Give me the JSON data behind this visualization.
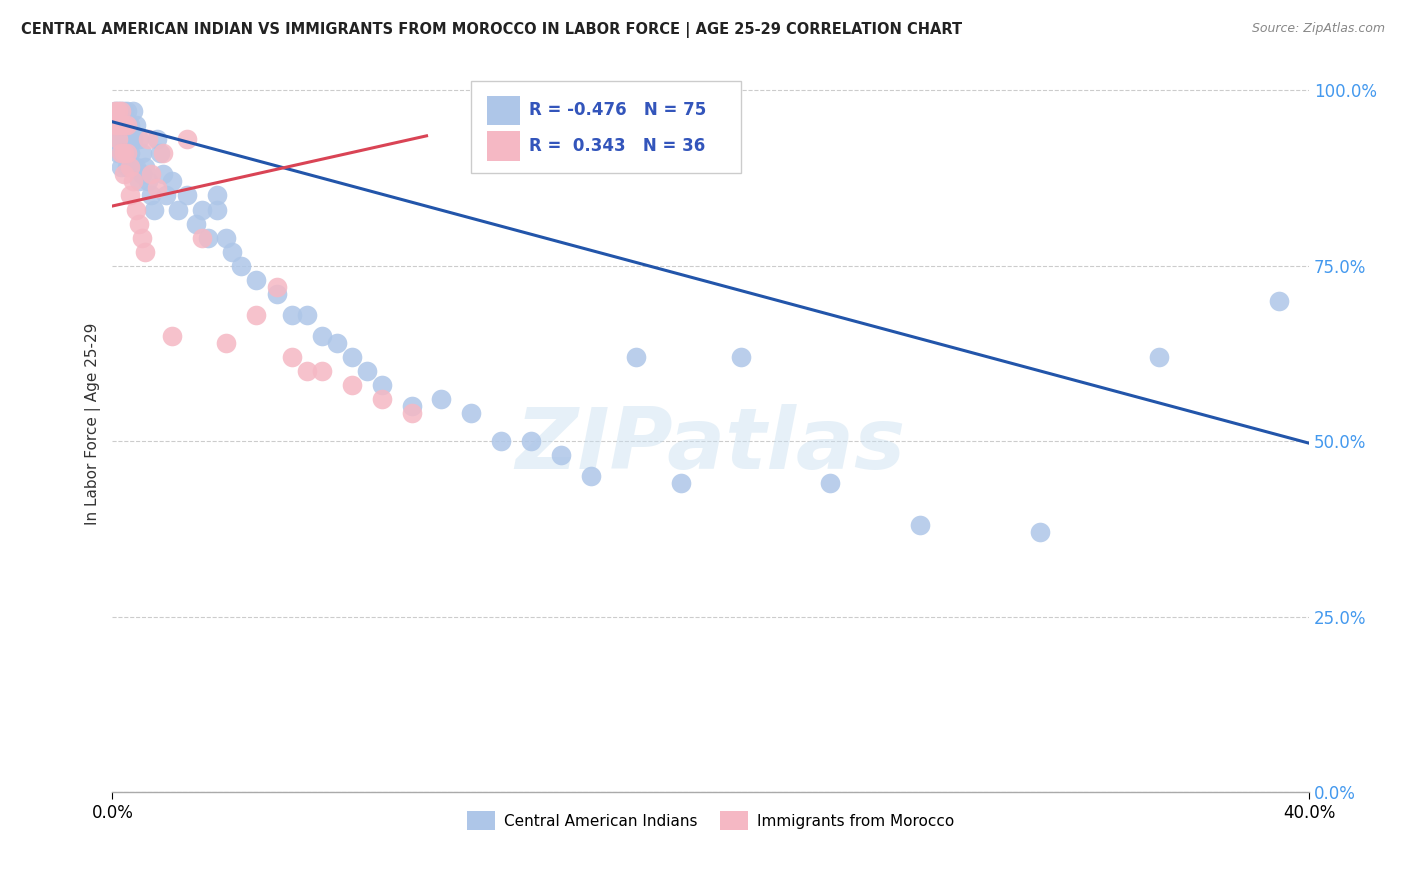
{
  "title": "CENTRAL AMERICAN INDIAN VS IMMIGRANTS FROM MOROCCO IN LABOR FORCE | AGE 25-29 CORRELATION CHART",
  "source": "Source: ZipAtlas.com",
  "ylabel": "In Labor Force | Age 25-29",
  "xlim": [
    0.0,
    0.4
  ],
  "ylim": [
    0.0,
    1.05
  ],
  "yticks": [
    0.0,
    0.25,
    0.5,
    0.75,
    1.0
  ],
  "ytick_labels": [
    "0.0%",
    "25.0%",
    "50.0%",
    "75.0%",
    "100.0%"
  ],
  "xtick_labels": [
    "0.0%",
    "40.0%"
  ],
  "xtick_pos": [
    0.0,
    0.4
  ],
  "blue_R": -0.476,
  "blue_N": 75,
  "pink_R": 0.343,
  "pink_N": 36,
  "blue_color": "#aec6e8",
  "pink_color": "#f5b8c4",
  "blue_line_color": "#2255aa",
  "pink_line_color": "#d94455",
  "watermark_text": "ZIPatlas",
  "legend_blue_label": "Central American Indians",
  "legend_pink_label": "Immigrants from Morocco",
  "blue_line_x0": 0.0,
  "blue_line_y0": 0.955,
  "blue_line_x1": 0.4,
  "blue_line_y1": 0.497,
  "pink_line_x0": 0.0,
  "pink_line_y0": 0.835,
  "pink_line_x1": 0.105,
  "pink_line_y1": 0.935,
  "blue_x": [
    0.001,
    0.001,
    0.001,
    0.002,
    0.002,
    0.002,
    0.002,
    0.003,
    0.003,
    0.003,
    0.003,
    0.003,
    0.004,
    0.004,
    0.004,
    0.004,
    0.005,
    0.005,
    0.005,
    0.005,
    0.006,
    0.006,
    0.006,
    0.007,
    0.007,
    0.007,
    0.008,
    0.008,
    0.009,
    0.009,
    0.01,
    0.01,
    0.011,
    0.012,
    0.013,
    0.014,
    0.015,
    0.016,
    0.017,
    0.018,
    0.02,
    0.022,
    0.025,
    0.028,
    0.03,
    0.032,
    0.035,
    0.035,
    0.038,
    0.04,
    0.043,
    0.048,
    0.055,
    0.06,
    0.065,
    0.07,
    0.075,
    0.08,
    0.085,
    0.09,
    0.1,
    0.11,
    0.12,
    0.13,
    0.14,
    0.15,
    0.16,
    0.175,
    0.19,
    0.21,
    0.24,
    0.27,
    0.31,
    0.35,
    0.39
  ],
  "blue_y": [
    0.97,
    0.95,
    0.93,
    0.97,
    0.95,
    0.93,
    0.91,
    0.97,
    0.95,
    0.93,
    0.91,
    0.89,
    0.97,
    0.95,
    0.93,
    0.91,
    0.97,
    0.95,
    0.93,
    0.89,
    0.95,
    0.93,
    0.91,
    0.97,
    0.93,
    0.89,
    0.95,
    0.89,
    0.93,
    0.87,
    0.91,
    0.88,
    0.89,
    0.87,
    0.85,
    0.83,
    0.93,
    0.91,
    0.88,
    0.85,
    0.87,
    0.83,
    0.85,
    0.81,
    0.83,
    0.79,
    0.85,
    0.83,
    0.79,
    0.77,
    0.75,
    0.73,
    0.71,
    0.68,
    0.68,
    0.65,
    0.64,
    0.62,
    0.6,
    0.58,
    0.55,
    0.56,
    0.54,
    0.5,
    0.5,
    0.48,
    0.45,
    0.62,
    0.44,
    0.62,
    0.44,
    0.38,
    0.37,
    0.62,
    0.7
  ],
  "pink_x": [
    0.001,
    0.001,
    0.002,
    0.002,
    0.002,
    0.003,
    0.003,
    0.003,
    0.004,
    0.004,
    0.004,
    0.005,
    0.005,
    0.006,
    0.006,
    0.007,
    0.008,
    0.009,
    0.01,
    0.011,
    0.012,
    0.013,
    0.015,
    0.017,
    0.02,
    0.025,
    0.03,
    0.038,
    0.048,
    0.055,
    0.06,
    0.065,
    0.07,
    0.08,
    0.09,
    0.1
  ],
  "pink_y": [
    0.97,
    0.95,
    0.97,
    0.95,
    0.93,
    0.97,
    0.95,
    0.91,
    0.95,
    0.91,
    0.88,
    0.95,
    0.91,
    0.89,
    0.85,
    0.87,
    0.83,
    0.81,
    0.79,
    0.77,
    0.93,
    0.88,
    0.86,
    0.91,
    0.65,
    0.93,
    0.79,
    0.64,
    0.68,
    0.72,
    0.62,
    0.6,
    0.6,
    0.58,
    0.56,
    0.54
  ]
}
